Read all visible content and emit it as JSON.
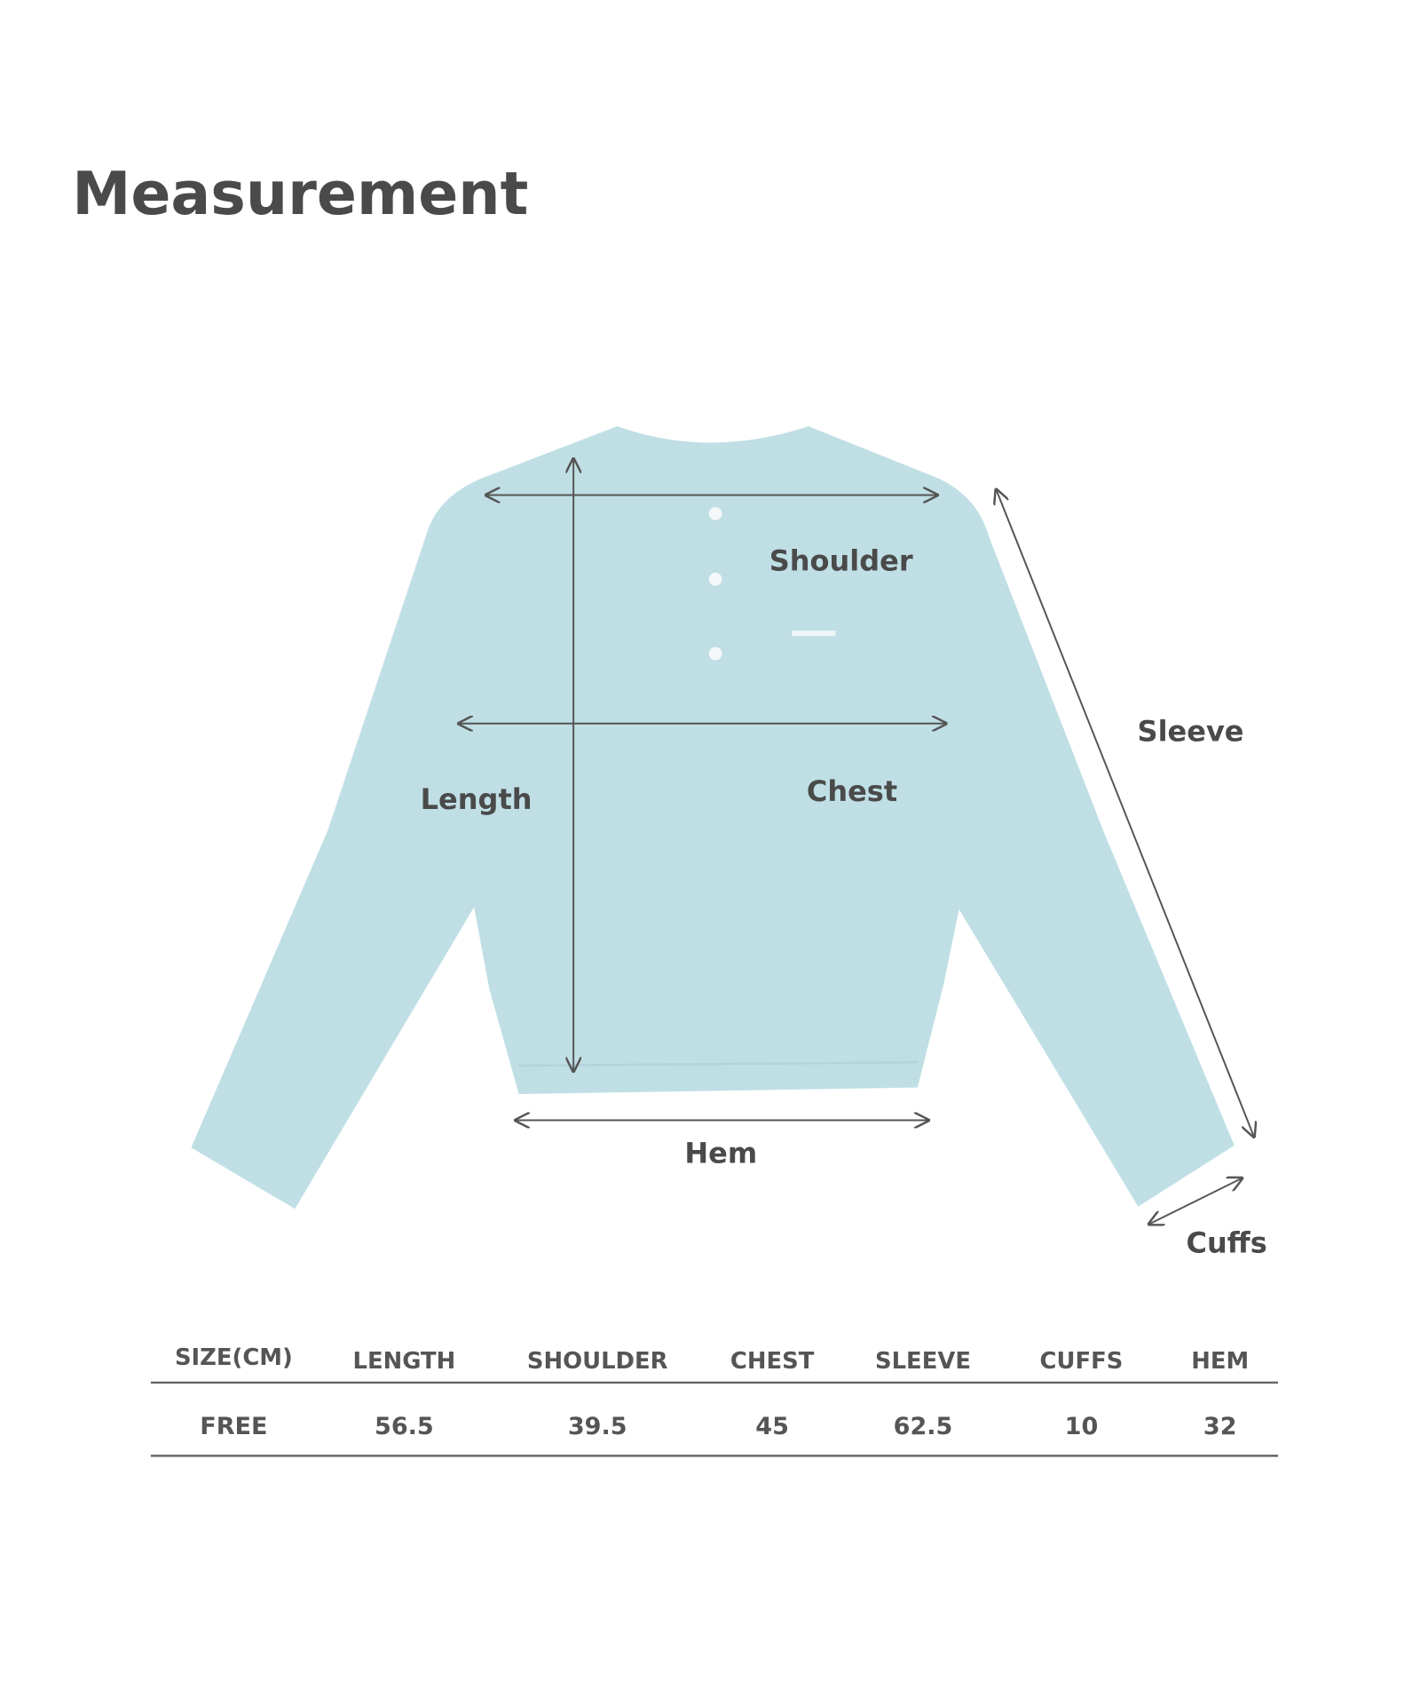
{
  "title": "Measurement",
  "garment_color": "#bfdfe5",
  "labels": {
    "shoulder": "Shoulder",
    "sleeve": "Sleeve",
    "length": "Length",
    "chest": "Chest",
    "hem": "Hem",
    "cuffs": "Cuffs"
  },
  "table": {
    "headers": [
      "SIZE(CM)",
      "LENGTH",
      "SHOULDER",
      "CHEST",
      "SLEEVE",
      "CUFFS",
      "HEM"
    ],
    "rows": [
      [
        "FREE",
        "56.5",
        "39.5",
        "45",
        "62.5",
        "10",
        "32"
      ]
    ]
  }
}
